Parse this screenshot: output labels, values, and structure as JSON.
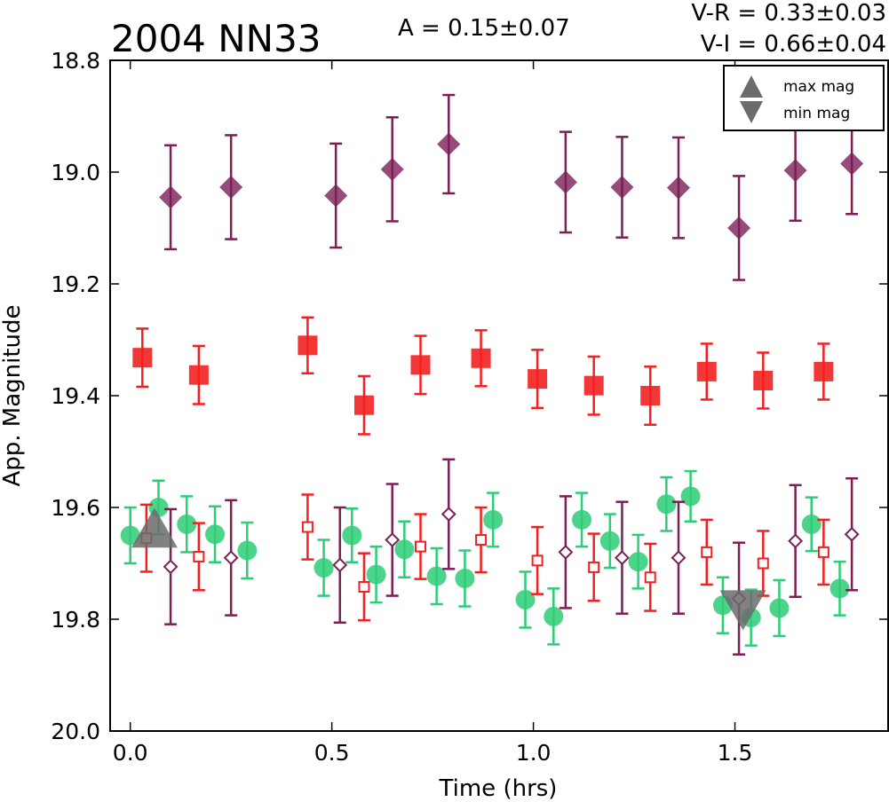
{
  "chart_data": {
    "type": "scatter",
    "title": "2004 NN33",
    "annotations": {
      "amplitude": "A  = 0.15±0.07",
      "v_r": "V-R = 0.33±0.03",
      "v_i": "V-I  = 0.66±0.04"
    },
    "xlabel": "Time (hrs)",
    "ylabel": "App. Magnitude",
    "xlim": [
      -0.05,
      1.88
    ],
    "ylim": [
      20.0,
      18.8
    ],
    "y_inverted": true,
    "grid": false,
    "x_ticks": [
      "0.0",
      "0.5",
      "1.0",
      "1.5"
    ],
    "y_ticks": [
      "18.8",
      "19.0",
      "19.2",
      "19.4",
      "19.6",
      "19.8",
      "20.0"
    ],
    "legend": {
      "position": "top-right",
      "entries": [
        "max mag",
        "min mag"
      ]
    },
    "colors": {
      "diamond_filled": "#7b1f56",
      "square_filled": "#f22020",
      "circle_green": "#2ecc77",
      "diamond_open": "#7b1f56",
      "square_open": "#f22020",
      "marker_max_min": "#6b6b6b"
    },
    "series": [
      {
        "marker": "diamond-filled",
        "color": "#7b1f56",
        "points": [
          {
            "x": 0.1,
            "y": 19.045,
            "err": 0.093
          },
          {
            "x": 0.25,
            "y": 19.027,
            "err": 0.093
          },
          {
            "x": 0.51,
            "y": 19.042,
            "err": 0.093
          },
          {
            "x": 0.65,
            "y": 18.995,
            "err": 0.093
          },
          {
            "x": 0.79,
            "y": 18.95,
            "err": 0.088
          },
          {
            "x": 1.08,
            "y": 19.018,
            "err": 0.09
          },
          {
            "x": 1.22,
            "y": 19.027,
            "err": 0.09
          },
          {
            "x": 1.36,
            "y": 19.028,
            "err": 0.09
          },
          {
            "x": 1.51,
            "y": 19.1,
            "err": 0.093
          },
          {
            "x": 1.65,
            "y": 18.997,
            "err": 0.09
          },
          {
            "x": 1.79,
            "y": 18.985,
            "err": 0.09
          }
        ]
      },
      {
        "marker": "square-filled",
        "color": "#f22020",
        "points": [
          {
            "x": 0.03,
            "y": 19.332,
            "err": 0.052
          },
          {
            "x": 0.17,
            "y": 19.363,
            "err": 0.052
          },
          {
            "x": 0.44,
            "y": 19.31,
            "err": 0.05
          },
          {
            "x": 0.58,
            "y": 19.417,
            "err": 0.052
          },
          {
            "x": 0.72,
            "y": 19.345,
            "err": 0.052
          },
          {
            "x": 0.87,
            "y": 19.333,
            "err": 0.05
          },
          {
            "x": 1.01,
            "y": 19.37,
            "err": 0.052
          },
          {
            "x": 1.15,
            "y": 19.382,
            "err": 0.052
          },
          {
            "x": 1.29,
            "y": 19.4,
            "err": 0.052
          },
          {
            "x": 1.43,
            "y": 19.357,
            "err": 0.05
          },
          {
            "x": 1.57,
            "y": 19.373,
            "err": 0.05
          },
          {
            "x": 1.72,
            "y": 19.357,
            "err": 0.05
          }
        ]
      },
      {
        "marker": "circle-filled",
        "color": "#2ecc77",
        "points": [
          {
            "x": 0.0,
            "y": 19.65,
            "err": 0.05
          },
          {
            "x": 0.07,
            "y": 19.6,
            "err": 0.048
          },
          {
            "x": 0.14,
            "y": 19.63,
            "err": 0.05
          },
          {
            "x": 0.21,
            "y": 19.648,
            "err": 0.05
          },
          {
            "x": 0.29,
            "y": 19.677,
            "err": 0.05
          },
          {
            "x": 0.48,
            "y": 19.708,
            "err": 0.05
          },
          {
            "x": 0.55,
            "y": 19.65,
            "err": 0.048
          },
          {
            "x": 0.61,
            "y": 19.72,
            "err": 0.05
          },
          {
            "x": 0.68,
            "y": 19.675,
            "err": 0.05
          },
          {
            "x": 0.76,
            "y": 19.723,
            "err": 0.05
          },
          {
            "x": 0.83,
            "y": 19.727,
            "err": 0.05
          },
          {
            "x": 0.9,
            "y": 19.622,
            "err": 0.048
          },
          {
            "x": 0.98,
            "y": 19.765,
            "err": 0.05
          },
          {
            "x": 1.05,
            "y": 19.795,
            "err": 0.05
          },
          {
            "x": 1.12,
            "y": 19.622,
            "err": 0.048
          },
          {
            "x": 1.19,
            "y": 19.66,
            "err": 0.048
          },
          {
            "x": 1.26,
            "y": 19.697,
            "err": 0.048
          },
          {
            "x": 1.33,
            "y": 19.594,
            "err": 0.048
          },
          {
            "x": 1.39,
            "y": 19.58,
            "err": 0.045
          },
          {
            "x": 1.47,
            "y": 19.775,
            "err": 0.05
          },
          {
            "x": 1.54,
            "y": 19.797,
            "err": 0.05
          },
          {
            "x": 1.61,
            "y": 19.78,
            "err": 0.05
          },
          {
            "x": 1.69,
            "y": 19.63,
            "err": 0.048
          },
          {
            "x": 1.76,
            "y": 19.745,
            "err": 0.048
          }
        ]
      },
      {
        "marker": "square-open",
        "color": "#f22020",
        "points": [
          {
            "x": 0.04,
            "y": 19.655,
            "err": 0.06
          },
          {
            "x": 0.17,
            "y": 19.688,
            "err": 0.06
          },
          {
            "x": 0.44,
            "y": 19.635,
            "err": 0.058
          },
          {
            "x": 0.58,
            "y": 19.742,
            "err": 0.06
          },
          {
            "x": 0.72,
            "y": 19.67,
            "err": 0.058
          },
          {
            "x": 0.87,
            "y": 19.658,
            "err": 0.058
          },
          {
            "x": 1.01,
            "y": 19.695,
            "err": 0.06
          },
          {
            "x": 1.15,
            "y": 19.707,
            "err": 0.06
          },
          {
            "x": 1.29,
            "y": 19.725,
            "err": 0.06
          },
          {
            "x": 1.43,
            "y": 19.68,
            "err": 0.058
          },
          {
            "x": 1.57,
            "y": 19.7,
            "err": 0.058
          },
          {
            "x": 1.72,
            "y": 19.68,
            "err": 0.058
          }
        ]
      },
      {
        "marker": "diamond-open",
        "color": "#7b1f56",
        "points": [
          {
            "x": 0.1,
            "y": 19.706,
            "err": 0.103
          },
          {
            "x": 0.25,
            "y": 19.69,
            "err": 0.103
          },
          {
            "x": 0.52,
            "y": 19.703,
            "err": 0.103
          },
          {
            "x": 0.65,
            "y": 19.658,
            "err": 0.1
          },
          {
            "x": 0.79,
            "y": 19.612,
            "err": 0.098
          },
          {
            "x": 1.08,
            "y": 19.68,
            "err": 0.1
          },
          {
            "x": 1.22,
            "y": 19.69,
            "err": 0.1
          },
          {
            "x": 1.36,
            "y": 19.69,
            "err": 0.1
          },
          {
            "x": 1.51,
            "y": 19.763,
            "err": 0.1
          },
          {
            "x": 1.65,
            "y": 19.66,
            "err": 0.1
          },
          {
            "x": 1.79,
            "y": 19.648,
            "err": 0.1
          }
        ]
      },
      {
        "marker": "triangle-up",
        "color": "#6b6b6b",
        "label": "max mag",
        "points": [
          {
            "x": 0.06,
            "y": 19.64
          }
        ]
      },
      {
        "marker": "triangle-down",
        "color": "#6b6b6b",
        "label": "min mag",
        "points": [
          {
            "x": 1.52,
            "y": 19.78
          }
        ]
      }
    ]
  }
}
